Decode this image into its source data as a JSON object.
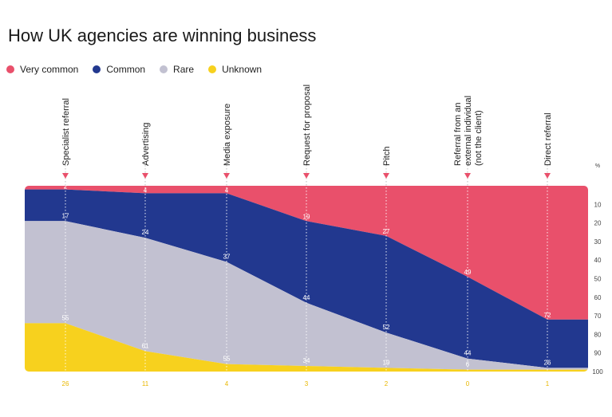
{
  "chart_data": {
    "type": "area",
    "title": "How UK agencies are winning business",
    "unit_label": "%",
    "y_ticks": [
      "10",
      "20",
      "30",
      "40",
      "50",
      "60",
      "70",
      "80",
      "90",
      "100"
    ],
    "categories": [
      [
        "Specialist referral"
      ],
      [
        "Advertising"
      ],
      [
        "Media exposure"
      ],
      [
        "Request for proposal"
      ],
      [
        "Pitch"
      ],
      [
        "Referral from an",
        "external individual",
        "(not the client)"
      ],
      [
        "Direct referral"
      ]
    ],
    "series": [
      {
        "name": "Very common",
        "color": "#e9506b",
        "values": [
          2,
          4,
          4,
          19,
          27,
          49,
          72
        ]
      },
      {
        "name": "Common",
        "color": "#22388f",
        "values": [
          17,
          24,
          37,
          44,
          52,
          44,
          26
        ]
      },
      {
        "name": "Rare",
        "color": "#c2c1d1",
        "values": [
          55,
          61,
          55,
          34,
          19,
          6,
          1
        ]
      },
      {
        "name": "Unknown",
        "color": "#f7d11e",
        "values": [
          26,
          11,
          4,
          3,
          2,
          0,
          1
        ]
      }
    ],
    "labels": {
      "very_common": [
        "2",
        "4",
        "4",
        "19",
        "27",
        "49",
        "72"
      ],
      "common": [
        "17",
        "24",
        "37",
        "44",
        "52",
        "44",
        "26"
      ],
      "rare": [
        "55",
        "61",
        "55",
        "34",
        "19",
        "6",
        ""
      ],
      "unknown": [
        "26",
        "11",
        "4",
        "3",
        "2",
        "0",
        "1"
      ]
    },
    "ylim": [
      0,
      100
    ],
    "legend_position": "top-left"
  },
  "legend": [
    {
      "label": "Very common",
      "color": "#e9506b"
    },
    {
      "label": "Common",
      "color": "#22388f"
    },
    {
      "label": "Rare",
      "color": "#c2c1d1"
    },
    {
      "label": "Unknown",
      "color": "#f7d11e"
    }
  ]
}
